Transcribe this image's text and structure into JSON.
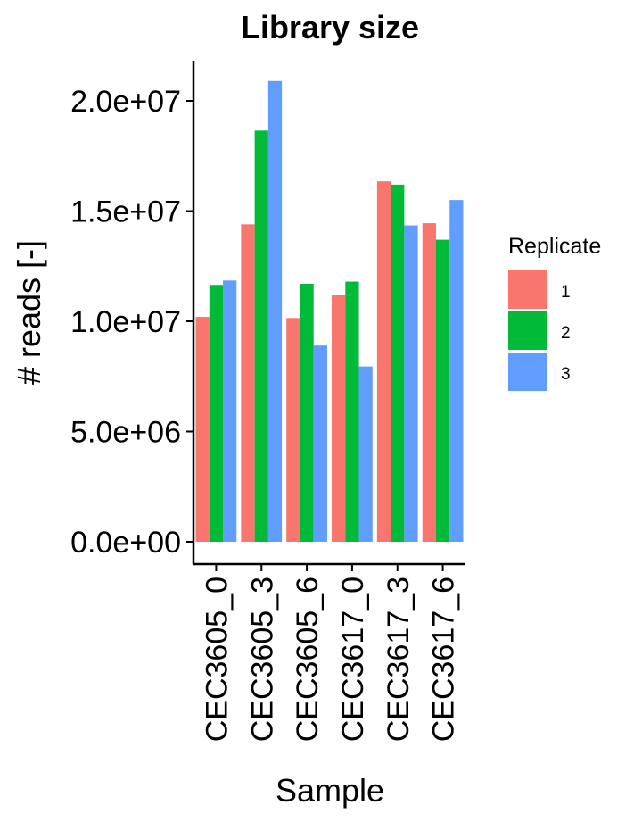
{
  "chart_data": {
    "type": "bar",
    "title": "Library size",
    "xlabel": "Sample",
    "ylabel": "# reads [-]",
    "categories": [
      "CEC3605_0",
      "CEC3605_3",
      "CEC3605_6",
      "CEC3617_0",
      "CEC3617_3",
      "CEC3617_6"
    ],
    "yticks": [
      0,
      5000000,
      10000000,
      15000000,
      20000000
    ],
    "ytick_labels": [
      "0.0e+00",
      "5.0e+06",
      "1.0e+07",
      "1.5e+07",
      "2.0e+07"
    ],
    "ylim": [
      0,
      21800000
    ],
    "grid": false,
    "legend": {
      "title": "Replicate",
      "placement": "right"
    },
    "series": [
      {
        "name": "1",
        "color": "#F8766D",
        "values": [
          10200000,
          14400000,
          10150000,
          11200000,
          16350000,
          14450000
        ]
      },
      {
        "name": "2",
        "color": "#00BA38",
        "values": [
          11650000,
          18650000,
          11700000,
          11800000,
          16200000,
          13700000
        ]
      },
      {
        "name": "3",
        "color": "#619CFF",
        "values": [
          11850000,
          20900000,
          8900000,
          7950000,
          14350000,
          15500000
        ]
      }
    ]
  }
}
